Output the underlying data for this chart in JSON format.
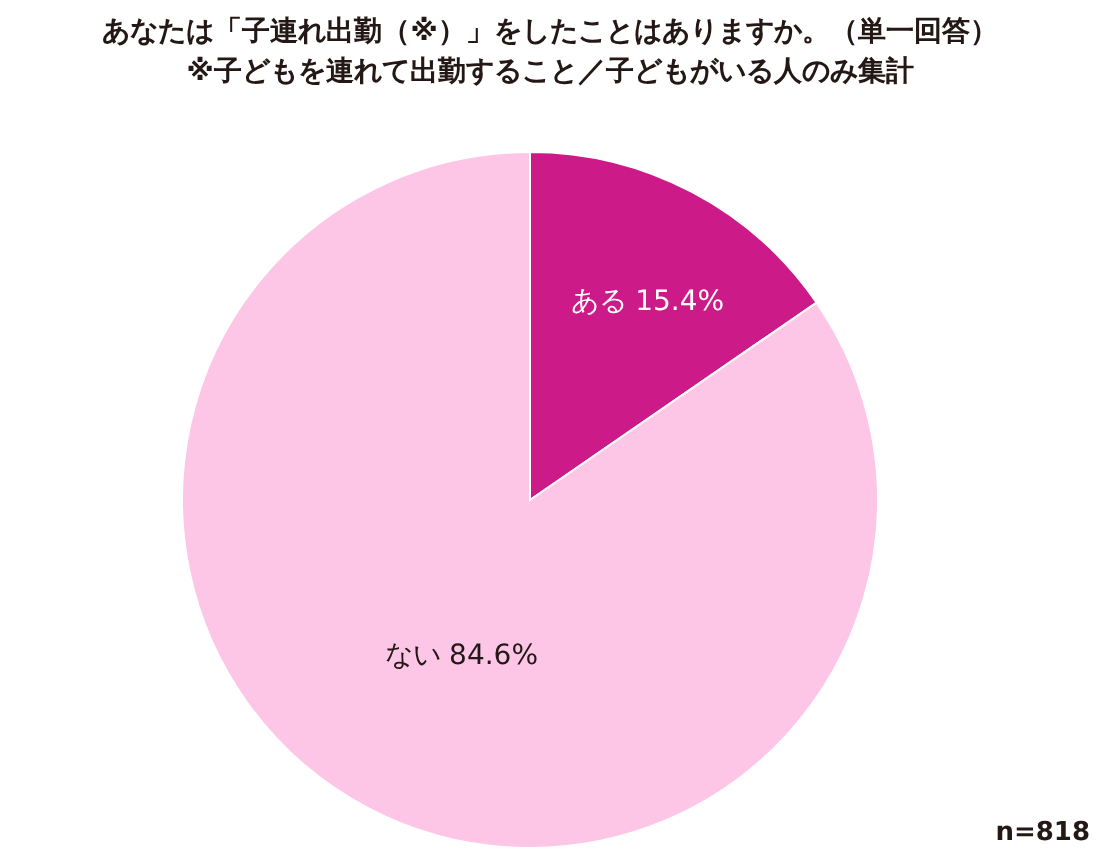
{
  "chart_data": {
    "type": "pie",
    "title": "あなたは「子連れ出勤（※）」をしたことはありますか。（単一回答）",
    "subtitle": "※子どもを連れて出勤すること／子どもがいる人のみ集計",
    "categories": [
      "ある",
      "ない"
    ],
    "values": [
      15.4,
      84.6
    ],
    "colors": [
      "#cc1a88",
      "#fdc6e6"
    ],
    "value_labels": [
      "15.4%",
      "84.6%"
    ],
    "annotations": [
      "n=818"
    ]
  }
}
